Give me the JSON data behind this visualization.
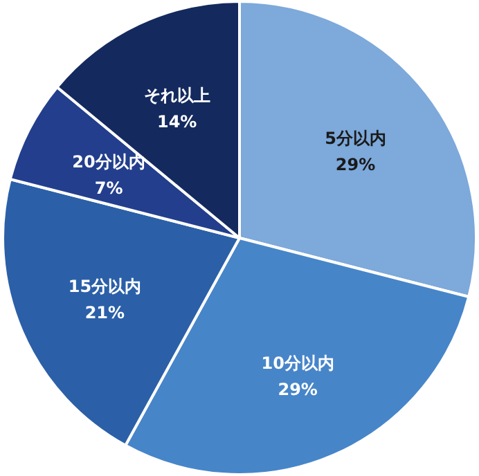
{
  "chart_data": {
    "type": "pie",
    "categories": [
      "5分以内",
      "10分以内",
      "15分以内",
      "20分以内",
      "それ以上"
    ],
    "values": [
      29,
      29,
      21,
      7,
      14
    ],
    "value_labels": [
      "29%",
      "29%",
      "21%",
      "7%",
      "14%"
    ],
    "colors": [
      "#7da9db",
      "#4785c9",
      "#2b60a8",
      "#233e8c",
      "#142a5e"
    ]
  }
}
